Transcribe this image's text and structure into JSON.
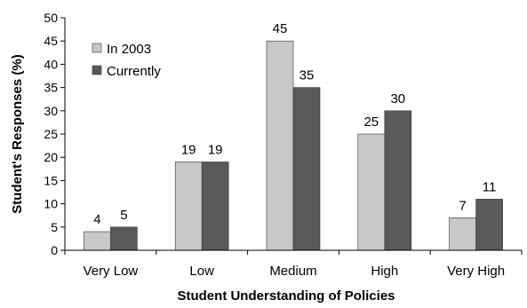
{
  "chart_data": {
    "type": "bar",
    "title": "",
    "xlabel": "Student Understanding of Policies",
    "ylabel": "Student's Responses (%)",
    "ylim": [
      0,
      50
    ],
    "yticks": [
      0,
      5,
      10,
      15,
      20,
      25,
      30,
      35,
      40,
      45,
      50
    ],
    "categories": [
      "Very Low",
      "Low",
      "Medium",
      "High",
      "Very High"
    ],
    "series": [
      {
        "name": "In 2003",
        "values": [
          4,
          19,
          45,
          25,
          7
        ],
        "color": "#c8c8c8"
      },
      {
        "name": "Currently",
        "values": [
          5,
          19,
          35,
          30,
          11
        ],
        "color": "#5a5a5a"
      }
    ],
    "legend_position": "top-left",
    "grid": false
  }
}
